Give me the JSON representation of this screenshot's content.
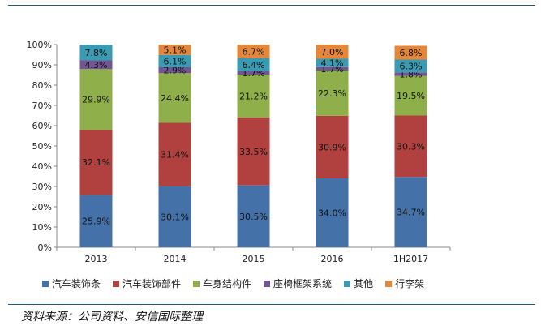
{
  "chart_data": {
    "type": "bar",
    "stacked": true,
    "categories": [
      "2013",
      "2014",
      "2015",
      "2016",
      "1H2017"
    ],
    "series": [
      {
        "name": "汽车装饰条",
        "color": "#4472a8",
        "values": [
          25.9,
          30.1,
          30.5,
          34.0,
          34.7
        ]
      },
      {
        "name": "汽车装饰部件",
        "color": "#b0413e",
        "values": [
          32.1,
          31.4,
          33.5,
          30.9,
          30.3
        ]
      },
      {
        "name": "车身结构件",
        "color": "#8faf4b",
        "values": [
          29.9,
          24.4,
          21.2,
          22.3,
          19.5
        ]
      },
      {
        "name": "座椅框架系统",
        "color": "#725593",
        "values": [
          4.3,
          2.9,
          1.7,
          1.7,
          1.8
        ]
      },
      {
        "name": "其他",
        "color": "#3a9bb3",
        "values": [
          7.8,
          6.1,
          6.4,
          4.1,
          6.3
        ]
      },
      {
        "name": "行李架",
        "color": "#e5873a",
        "values": [
          0.0,
          5.1,
          6.7,
          7.0,
          6.8
        ]
      }
    ],
    "labels": [
      [
        "25.9%",
        "32.1%",
        "29.9%",
        "4.3%",
        "7.8%",
        ""
      ],
      [
        "30.1%",
        "31.4%",
        "24.4%",
        "2.9%",
        "6.1%",
        "5.1%"
      ],
      [
        "30.5%",
        "33.5%",
        "21.2%",
        "1.7%",
        "6.4%",
        "6.7%"
      ],
      [
        "34.0%",
        "30.9%",
        "22.3%",
        "1.7%",
        "4.1%",
        "7.0%"
      ],
      [
        "34.7%",
        "30.3%",
        "19.5%",
        "1.8%",
        "6.3%",
        "6.8%"
      ]
    ],
    "yticks": [
      "0%",
      "10%",
      "20%",
      "30%",
      "40%",
      "50%",
      "60%",
      "70%",
      "80%",
      "90%",
      "100%"
    ],
    "ylim": [
      0,
      100
    ],
    "legend_position": "bottom"
  },
  "source": "资料来源：公司资料、安信国际整理"
}
